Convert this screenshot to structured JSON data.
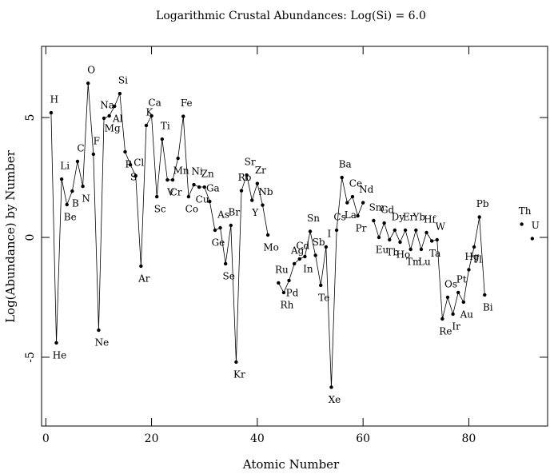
{
  "chart_data": {
    "type": "line",
    "title": "Logarithmic Crustal Abundances: Log(Si) = 6.0",
    "xlabel": "Atomic Number",
    "ylabel": "Log(Abundance) by Number",
    "xlim": [
      -0.8,
      94.9
    ],
    "ylim": [
      -7.87,
      7.97
    ],
    "xticks": [
      0,
      20,
      40,
      60,
      80
    ],
    "yticks": [
      -5,
      0,
      5
    ],
    "grid": false,
    "series": [
      {
        "name": null,
        "color": "#000000",
        "x": [
          1,
          2,
          3,
          4,
          5,
          6,
          7,
          8,
          9,
          10,
          11,
          12,
          13,
          14,
          15,
          16,
          17,
          18,
          19,
          20,
          21,
          22,
          23,
          24,
          25,
          26,
          27,
          28,
          29,
          30,
          31,
          32,
          33,
          34,
          35,
          36,
          37,
          38,
          39,
          40,
          41,
          42,
          43,
          44,
          45,
          46,
          47,
          48,
          49,
          50,
          51,
          52,
          53,
          54,
          55,
          56,
          57,
          58,
          59,
          60,
          61,
          62,
          63,
          64,
          65,
          66,
          67,
          68,
          69,
          70,
          71,
          72,
          73,
          74,
          75,
          76,
          77,
          78,
          79,
          80,
          81,
          82,
          83,
          84,
          85,
          86,
          87,
          88,
          89,
          90,
          91,
          92
        ],
        "labels": [
          "H",
          "He",
          "Li",
          "Be",
          "B",
          "C",
          "N",
          "O",
          "F",
          "Ne",
          "Na",
          "Mg",
          "Al",
          "Si",
          "P",
          "S",
          "Cl",
          "Ar",
          "K",
          "Ca",
          "Sc",
          "Ti",
          "V",
          "Cr",
          "Mn",
          "Fe",
          "Co",
          "Ni",
          "Cu",
          "Zn",
          "Ga",
          "Ge",
          "As",
          "Se",
          "Br",
          "Kr",
          "Rb",
          "Sr",
          "Y",
          "Zr",
          "Nb",
          "Mo",
          null,
          "Ru",
          "Rh",
          "Pd",
          "Ag",
          "Cd",
          "In",
          "Sn",
          "Sb",
          "Te",
          "I",
          "Xe",
          "Cs",
          "Ba",
          "La",
          "Ce",
          "Pr",
          "Nd",
          null,
          "Sm",
          "Eu",
          "Gd",
          "Tb",
          "Dy",
          "Ho",
          "Er",
          "Tm",
          "Yb",
          "Lu",
          "Hf",
          "Ta",
          "W",
          "Re",
          "Os",
          "Ir",
          "Pt",
          "Au",
          "Hg",
          "Tl",
          "Pb",
          "Bi",
          null,
          null,
          null,
          null,
          null,
          null,
          "Th",
          null,
          "U"
        ],
        "values": [
          5.2,
          -4.4,
          2.43,
          1.37,
          1.93,
          3.17,
          2.13,
          6.43,
          3.47,
          -3.87,
          4.97,
          5.07,
          5.47,
          6.0,
          3.57,
          3.03,
          2.57,
          -1.2,
          4.67,
          5.07,
          1.7,
          4.1,
          2.4,
          2.4,
          3.3,
          5.05,
          1.7,
          2.2,
          2.1,
          2.1,
          1.5,
          0.3,
          0.4,
          -1.1,
          0.5,
          -5.2,
          1.95,
          2.6,
          1.55,
          2.25,
          1.35,
          0.1,
          null,
          -1.9,
          -2.3,
          -1.8,
          -1.1,
          -0.9,
          -0.8,
          0.25,
          -0.75,
          -2.0,
          -0.4,
          -6.25,
          0.3,
          2.5,
          1.45,
          1.7,
          0.9,
          1.45,
          null,
          0.7,
          0.0,
          0.6,
          -0.1,
          0.3,
          -0.2,
          0.3,
          -0.5,
          0.3,
          -0.5,
          0.2,
          -0.15,
          -0.1,
          -3.4,
          -2.5,
          -3.2,
          -2.3,
          -2.7,
          -1.35,
          -0.4,
          0.85,
          -2.4,
          null,
          null,
          null,
          null,
          null,
          null,
          0.55,
          null,
          -0.05
        ]
      }
    ]
  }
}
